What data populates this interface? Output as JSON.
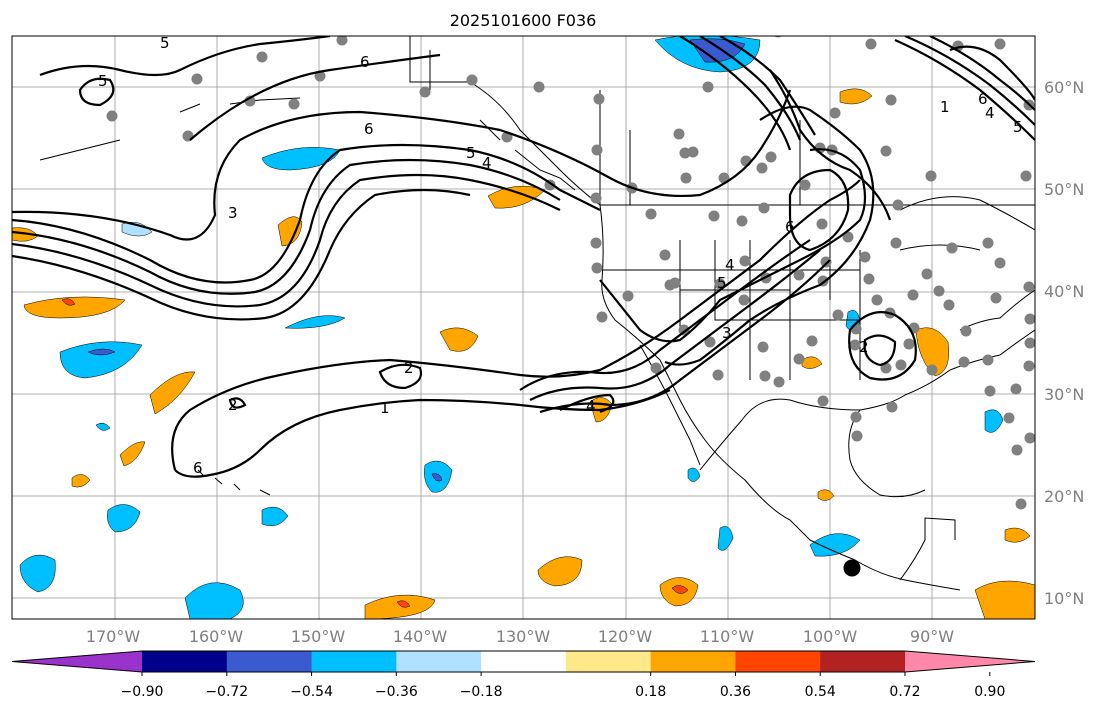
{
  "title": "2025101600 F036",
  "map": {
    "lon_labels": [
      "170°W",
      "160°W",
      "150°W",
      "140°W",
      "130°W",
      "120°W",
      "110°W",
      "100°W",
      "90°W"
    ],
    "lat_labels": [
      "60°N",
      "50°N",
      "40°N",
      "30°N",
      "20°N",
      "10°N"
    ],
    "contour_labels": [
      "5",
      "6",
      "6",
      "5",
      "4",
      "3",
      "2",
      "2",
      "1",
      "6",
      "4",
      "5",
      "3",
      "4",
      "6",
      "2",
      "1",
      "6",
      "4",
      "5"
    ]
  },
  "colorbar": {
    "ticks": [
      "−0.90",
      "−0.72",
      "−0.54",
      "−0.36",
      "−0.18",
      "0.18",
      "0.36",
      "0.54",
      "0.72",
      "0.90"
    ],
    "colors": [
      "#9933cc",
      "#00008b",
      "#3a5bd0",
      "#00bfff",
      "#b0e0ff",
      "#ffffff",
      "#ffe88a",
      "#ffa500",
      "#ff4500",
      "#b22222",
      "#ff88aa"
    ]
  }
}
